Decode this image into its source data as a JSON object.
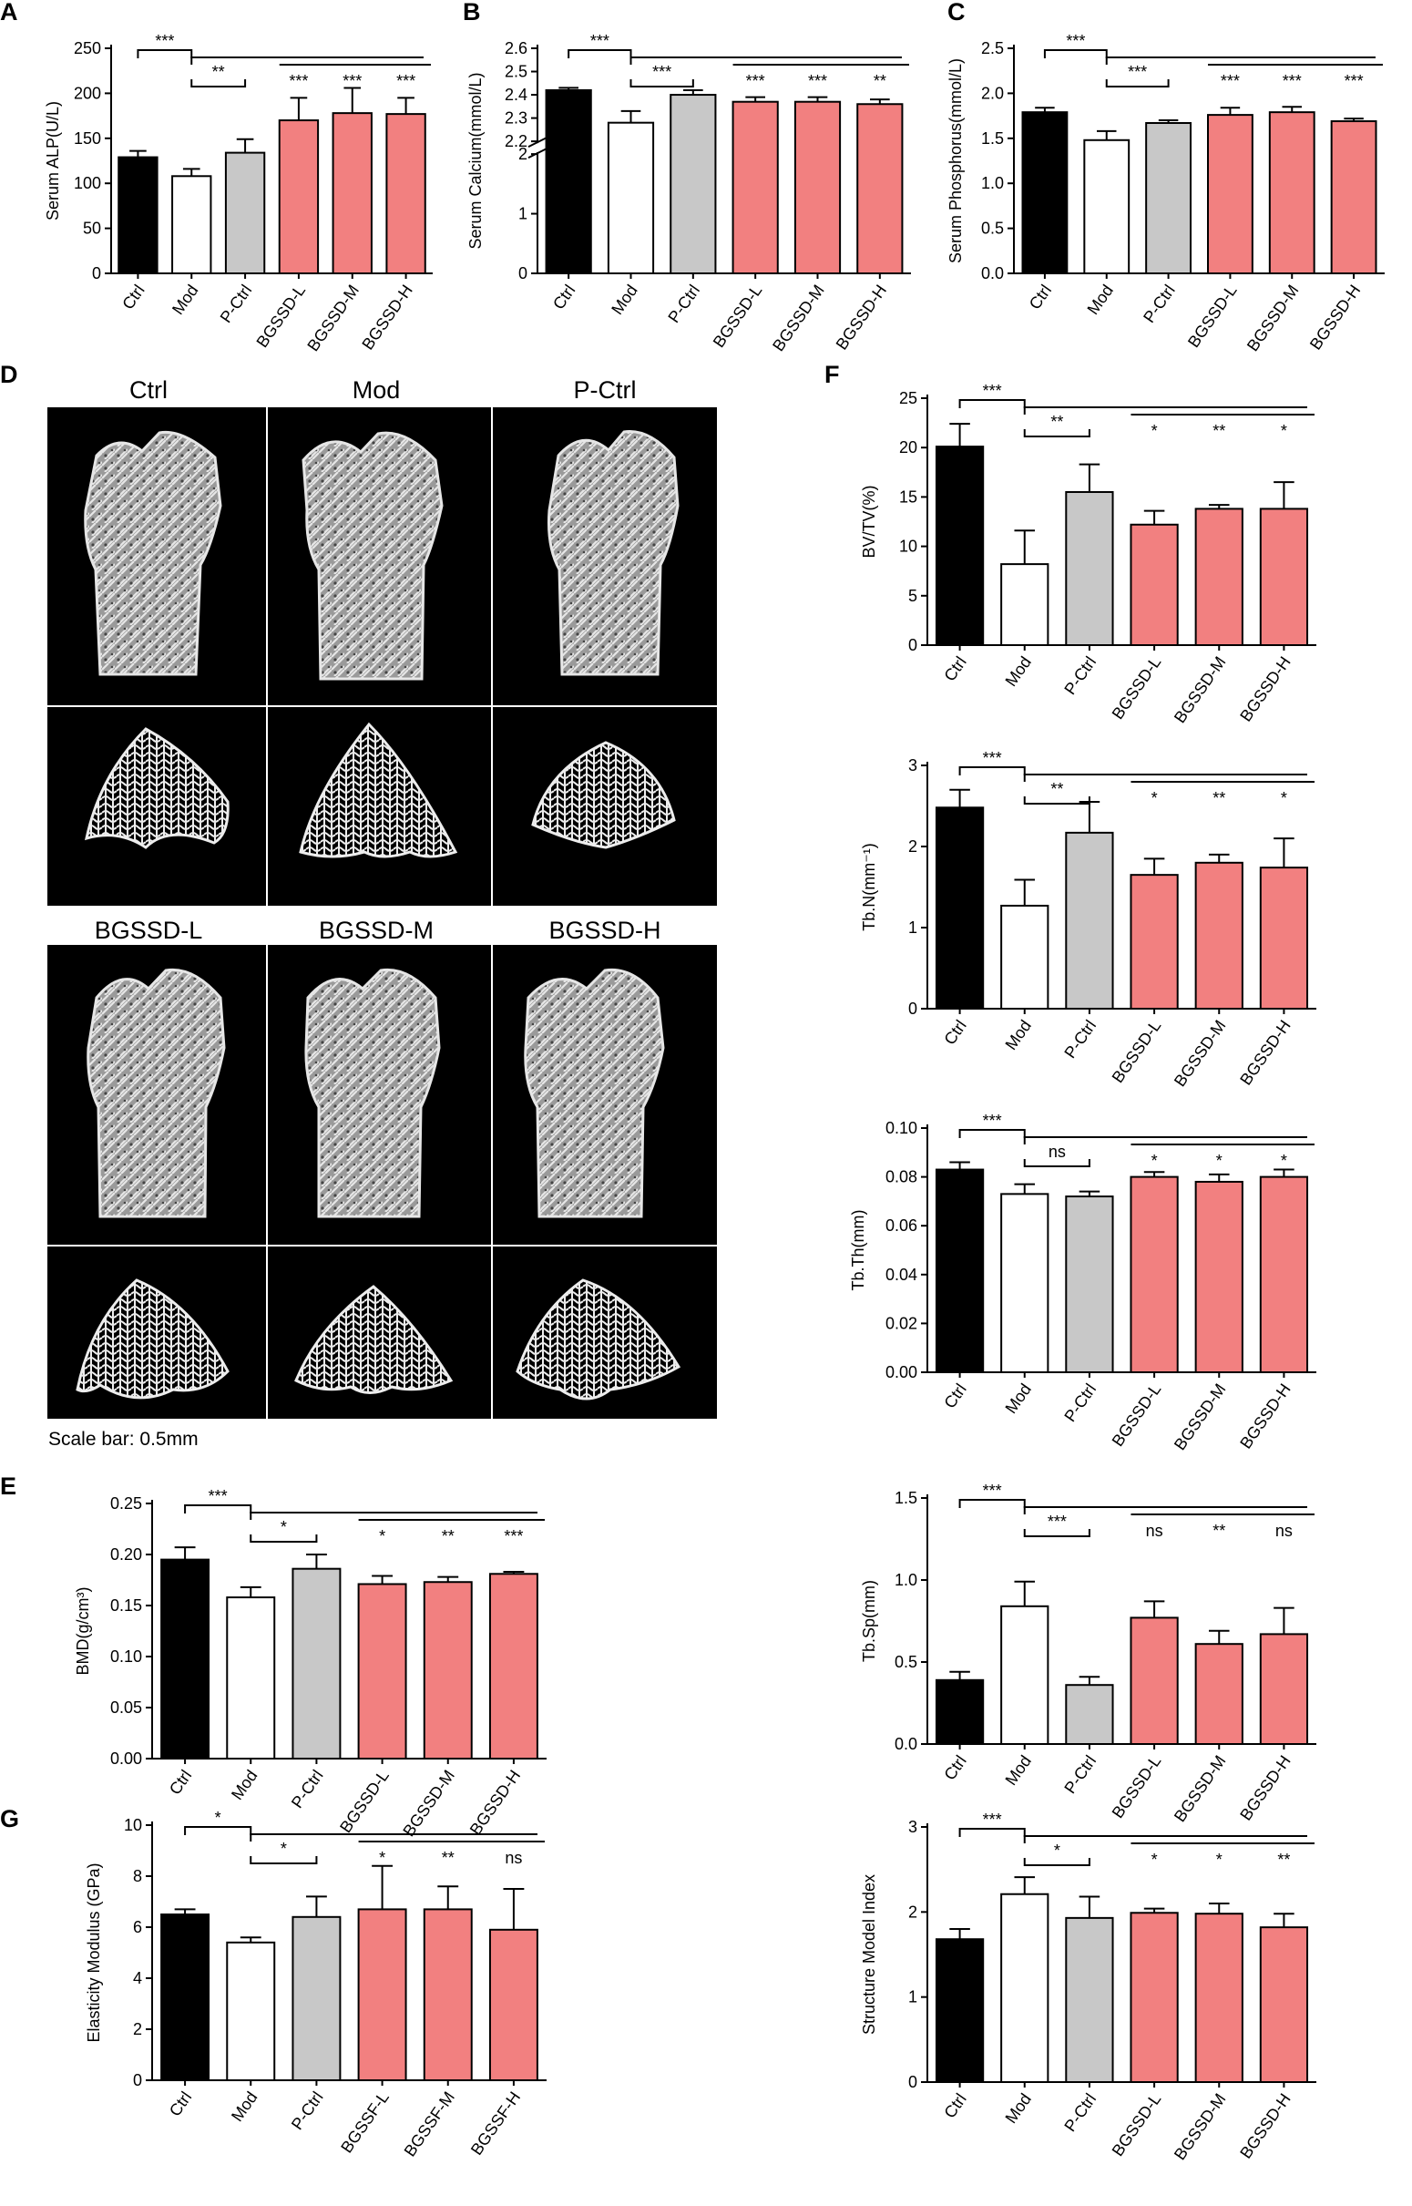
{
  "colors": {
    "ctrl": "#000000",
    "mod": "#ffffff",
    "pctrl": "#c8c8c8",
    "bgssd": "#f28080",
    "outline": "#000000",
    "scan_background": "#000000",
    "bone": "#d9d9d9"
  },
  "groups": [
    "Ctrl",
    "Mod",
    "P-Ctrl",
    "BGSSD-L",
    "BGSSD-M",
    "BGSSD-H"
  ],
  "panel_d": {
    "letter": "D",
    "row_top_labels": [
      "Ctrl",
      "Mod",
      "P-Ctrl"
    ],
    "row_bottom_labels": [
      "BGSSD-L",
      "BGSSD-M",
      "BGSSD-H"
    ],
    "scale_bar": "Scale bar: 0.5mm"
  },
  "chart_data": [
    {
      "panel": "A",
      "type": "bar",
      "ylabel": "Serum ALP(U/L)",
      "categories": [
        "Ctrl",
        "Mod",
        "P-Ctrl",
        "BGSSD-L",
        "BGSSD-M",
        "BGSSD-H"
      ],
      "values": [
        129,
        108,
        134,
        170,
        178,
        177
      ],
      "errors": [
        7,
        8,
        15,
        25,
        28,
        18
      ],
      "ylim": [
        0,
        250
      ],
      "yticks": [
        0,
        50,
        100,
        150,
        200,
        250
      ],
      "significance": {
        "ctrl_vs_mod": "***",
        "mod_vs_pctrl": "**",
        "mod_vs_bgssd": [
          "***",
          "***",
          "***"
        ]
      }
    },
    {
      "panel": "B",
      "type": "bar",
      "ylabel": "Serum Calcium(mmol/L)",
      "categories": [
        "Ctrl",
        "Mod",
        "P-Ctrl",
        "BGSSD-L",
        "BGSSD-M",
        "BGSSD-H"
      ],
      "values": [
        2.42,
        2.28,
        2.4,
        2.37,
        2.37,
        2.36
      ],
      "errors": [
        0.01,
        0.05,
        0.02,
        0.02,
        0.02,
        0.02
      ],
      "ylim": [
        0,
        2.6
      ],
      "axis_break": [
        2.0,
        2.2
      ],
      "yticks_lower": [
        0,
        1,
        2
      ],
      "yticks_upper": [
        2.2,
        2.3,
        2.4,
        2.5,
        2.6
      ],
      "significance": {
        "ctrl_vs_mod": "***",
        "mod_vs_pctrl": "***",
        "mod_vs_bgssd": [
          "***",
          "***",
          "**"
        ]
      }
    },
    {
      "panel": "C",
      "type": "bar",
      "ylabel": "Serum Phosphorus(mmol/L)",
      "categories": [
        "Ctrl",
        "Mod",
        "P-Ctrl",
        "BGSSD-L",
        "BGSSD-M",
        "BGSSD-H"
      ],
      "values": [
        1.79,
        1.48,
        1.67,
        1.76,
        1.79,
        1.69
      ],
      "errors": [
        0.05,
        0.1,
        0.03,
        0.08,
        0.06,
        0.03
      ],
      "ylim": [
        0,
        2.5
      ],
      "yticks": [
        0.0,
        0.5,
        1.0,
        1.5,
        2.0,
        2.5
      ],
      "significance": {
        "ctrl_vs_mod": "***",
        "mod_vs_pctrl": "***",
        "mod_vs_bgssd": [
          "***",
          "***",
          "***"
        ]
      }
    },
    {
      "panel": "F",
      "type": "bar",
      "ylabel": "BV/TV(%)",
      "categories": [
        "Ctrl",
        "Mod",
        "P-Ctrl",
        "BGSSD-L",
        "BGSSD-M",
        "BGSSD-H"
      ],
      "values": [
        20.1,
        8.2,
        15.5,
        12.2,
        13.8,
        13.8
      ],
      "errors": [
        2.3,
        3.4,
        2.8,
        1.4,
        0.4,
        2.7
      ],
      "ylim": [
        0,
        25
      ],
      "yticks": [
        0,
        5,
        10,
        15,
        20,
        25
      ],
      "significance": {
        "ctrl_vs_mod": "***",
        "mod_vs_pctrl": "**",
        "mod_vs_bgssd": [
          "*",
          "**",
          "*"
        ]
      }
    },
    {
      "panel": "F2",
      "type": "bar",
      "ylabel": "Tb.N(mm⁻¹)",
      "categories": [
        "Ctrl",
        "Mod",
        "P-Ctrl",
        "BGSSD-L",
        "BGSSD-M",
        "BGSSD-H"
      ],
      "values": [
        2.48,
        1.27,
        2.17,
        1.65,
        1.8,
        1.74
      ],
      "errors": [
        0.22,
        0.32,
        0.38,
        0.2,
        0.1,
        0.36
      ],
      "ylim": [
        0,
        3
      ],
      "yticks": [
        0,
        1,
        2,
        3
      ],
      "significance": {
        "ctrl_vs_mod": "***",
        "mod_vs_pctrl": "**",
        "mod_vs_bgssd": [
          "*",
          "**",
          "*"
        ]
      }
    },
    {
      "panel": "F3",
      "type": "bar",
      "ylabel": "Tb.Th(mm)",
      "categories": [
        "Ctrl",
        "Mod",
        "P-Ctrl",
        "BGSSD-L",
        "BGSSD-M",
        "BGSSD-H"
      ],
      "values": [
        0.083,
        0.073,
        0.072,
        0.08,
        0.078,
        0.08
      ],
      "errors": [
        0.003,
        0.004,
        0.002,
        0.002,
        0.003,
        0.003
      ],
      "ylim": [
        0,
        0.1
      ],
      "yticks": [
        0.0,
        0.02,
        0.04,
        0.06,
        0.08,
        0.1
      ],
      "ytick_labels": [
        "0.00",
        "0.02",
        "0.04",
        "0.06",
        "0.08",
        "0.10"
      ],
      "significance": {
        "ctrl_vs_mod": "***",
        "mod_vs_pctrl": "ns",
        "mod_vs_bgssd": [
          "*",
          "*",
          "*"
        ]
      }
    },
    {
      "panel": "E",
      "type": "bar",
      "ylabel": "BMD(g/cm³)",
      "categories": [
        "Ctrl",
        "Mod",
        "P-Ctrl",
        "BGSSD-L",
        "BGSSD-M",
        "BGSSD-H"
      ],
      "values": [
        0.195,
        0.158,
        0.186,
        0.171,
        0.173,
        0.181
      ],
      "errors": [
        0.012,
        0.01,
        0.014,
        0.008,
        0.005,
        0.002
      ],
      "ylim": [
        0,
        0.25
      ],
      "yticks": [
        0.0,
        0.05,
        0.1,
        0.15,
        0.2,
        0.25
      ],
      "ytick_labels": [
        "0.00",
        "0.05",
        "0.10",
        "0.15",
        "0.20",
        "0.25"
      ],
      "significance": {
        "ctrl_vs_mod": "***",
        "mod_vs_pctrl": "*",
        "mod_vs_bgssd": [
          "*",
          "**",
          "***"
        ]
      }
    },
    {
      "panel": "F4",
      "type": "bar",
      "ylabel": "Tb.Sp(mm)",
      "categories": [
        "Ctrl",
        "Mod",
        "P-Ctrl",
        "BGSSD-L",
        "BGSSD-M",
        "BGSSD-H"
      ],
      "values": [
        0.39,
        0.84,
        0.36,
        0.77,
        0.61,
        0.67
      ],
      "errors": [
        0.05,
        0.15,
        0.05,
        0.1,
        0.08,
        0.16
      ],
      "ylim": [
        0,
        1.5
      ],
      "yticks": [
        0.0,
        0.5,
        1.0,
        1.5
      ],
      "significance": {
        "ctrl_vs_mod": "***",
        "mod_vs_pctrl": "***",
        "mod_vs_bgssd": [
          "ns",
          "**",
          "ns"
        ]
      }
    },
    {
      "panel": "G",
      "type": "bar",
      "ylabel": "Elasticity Modulus (GPa)",
      "categories": [
        "Ctrl",
        "Mod",
        "P-Ctrl",
        "BGSSF-L",
        "BGSSF-M",
        "BGSSF-H"
      ],
      "values": [
        6.5,
        5.4,
        6.4,
        6.7,
        6.7,
        5.9
      ],
      "errors": [
        0.2,
        0.2,
        0.8,
        1.7,
        0.9,
        1.6
      ],
      "ylim": [
        0,
        10
      ],
      "yticks": [
        0,
        2,
        4,
        6,
        8,
        10
      ],
      "significance": {
        "ctrl_vs_mod": "*",
        "mod_vs_pctrl": "*",
        "mod_vs_bgssd": [
          "*",
          "**",
          "ns"
        ]
      }
    },
    {
      "panel": "F5",
      "type": "bar",
      "ylabel": "Structure Model Index",
      "categories": [
        "Ctrl",
        "Mod",
        "P-Ctrl",
        "BGSSD-L",
        "BGSSD-M",
        "BGSSD-H"
      ],
      "values": [
        1.68,
        2.21,
        1.93,
        1.99,
        1.98,
        1.82
      ],
      "errors": [
        0.12,
        0.2,
        0.25,
        0.05,
        0.12,
        0.16
      ],
      "ylim": [
        0,
        3
      ],
      "yticks": [
        0,
        1,
        2,
        3
      ],
      "significance": {
        "ctrl_vs_mod": "***",
        "mod_vs_pctrl": "*",
        "mod_vs_bgssd": [
          "*",
          "*",
          "**"
        ]
      }
    }
  ]
}
